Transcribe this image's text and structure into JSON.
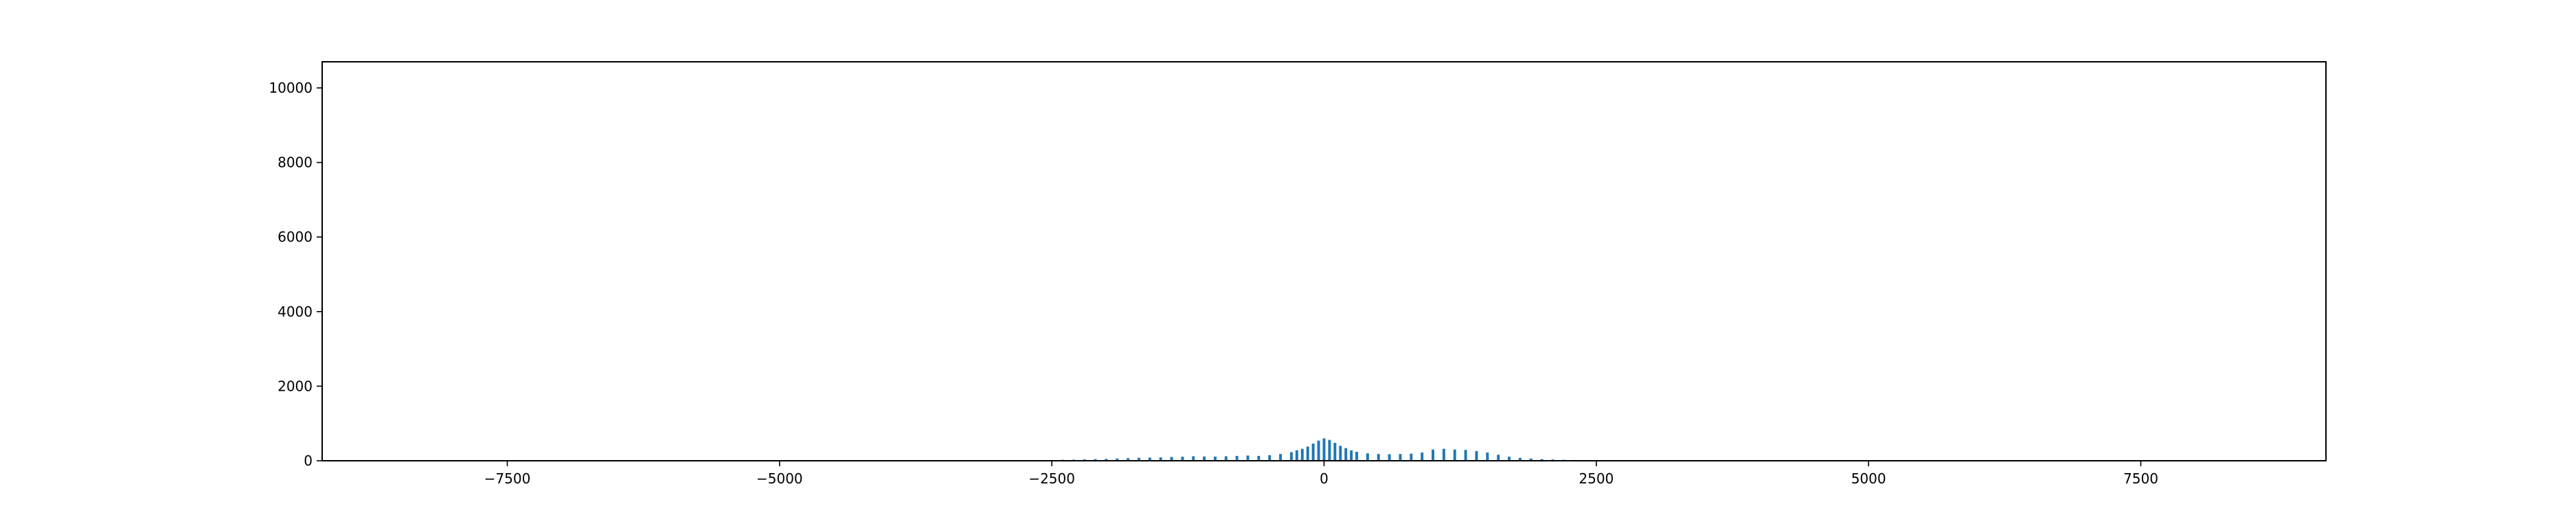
{
  "chart_data": {
    "type": "bar",
    "title": "",
    "xlabel": "",
    "ylabel": "",
    "xlim": [
      -9200,
      9200
    ],
    "ylim": [
      0,
      10700
    ],
    "grid": false,
    "bar_color": "#1f77b4",
    "bin_width": 25,
    "x_ticks": [
      -7500,
      -5000,
      -2500,
      0,
      2500,
      5000,
      7500
    ],
    "x_tick_labels": [
      "−7500",
      "−5000",
      "−2500",
      "0",
      "2500",
      "5000",
      "7500"
    ],
    "y_ticks": [
      0,
      2000,
      4000,
      6000,
      8000,
      10000
    ],
    "y_tick_labels": [
      "0",
      "2000",
      "4000",
      "6000",
      "8000",
      "10000"
    ],
    "series": [
      {
        "x": [
          -2600,
          -2500,
          -2400,
          -2300,
          -2200,
          -2100,
          -2000,
          -1900,
          -1800,
          -1700,
          -1600,
          -1500,
          -1400,
          -1300,
          -1200,
          -1100,
          -1000,
          -900,
          -800,
          -700,
          -600,
          -500,
          -400,
          -300,
          -250,
          -200,
          -150,
          -100,
          -50,
          0,
          50,
          100,
          150,
          200,
          250,
          300,
          400,
          500,
          600,
          700,
          800,
          900,
          1000,
          1100,
          1200,
          1300,
          1400,
          1500,
          1600,
          1700,
          1800,
          1900,
          2000,
          2100,
          2200,
          2300,
          2400,
          2500
        ],
        "y": [
          15,
          20,
          25,
          30,
          40,
          45,
          50,
          60,
          70,
          80,
          85,
          90,
          100,
          110,
          120,
          115,
          110,
          120,
          130,
          140,
          130,
          150,
          180,
          230,
          280,
          320,
          380,
          460,
          540,
          600,
          560,
          480,
          400,
          340,
          280,
          240,
          200,
          180,
          175,
          180,
          190,
          220,
          300,
          320,
          300,
          290,
          260,
          220,
          160,
          110,
          80,
          60,
          45,
          35,
          25,
          20,
          15,
          10
        ]
      }
    ]
  }
}
